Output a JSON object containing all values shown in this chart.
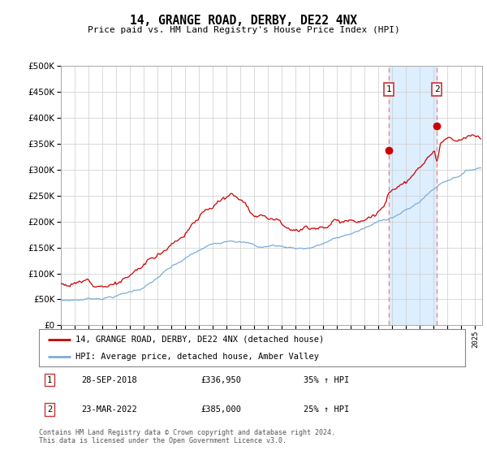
{
  "title": "14, GRANGE ROAD, DERBY, DE22 4NX",
  "subtitle": "Price paid vs. HM Land Registry's House Price Index (HPI)",
  "ytick_values": [
    0,
    50000,
    100000,
    150000,
    200000,
    250000,
    300000,
    350000,
    400000,
    450000,
    500000
  ],
  "ylim": [
    0,
    500000
  ],
  "xlim_start": 1995.0,
  "xlim_end": 2025.5,
  "background_color": "#ffffff",
  "plot_bg_color": "#ffffff",
  "grid_color": "#cccccc",
  "legend_label_red": "14, GRANGE ROAD, DERBY, DE22 4NX (detached house)",
  "legend_label_blue": "HPI: Average price, detached house, Amber Valley",
  "transaction1_date": "28-SEP-2018",
  "transaction1_price": "£336,950",
  "transaction1_hpi": "35% ↑ HPI",
  "transaction1_year": 2018.75,
  "transaction1_value": 336950,
  "transaction2_date": "23-MAR-2022",
  "transaction2_price": "£385,000",
  "transaction2_hpi": "25% ↑ HPI",
  "transaction2_year": 2022.22,
  "transaction2_value": 385000,
  "footer": "Contains HM Land Registry data © Crown copyright and database right 2024.\nThis data is licensed under the Open Government Licence v3.0.",
  "line_red_color": "#cc0000",
  "line_blue_color": "#7aaddb",
  "vline_color": "#ee8888",
  "highlight_color": "#ddeeff",
  "box_color": "#cc3333"
}
